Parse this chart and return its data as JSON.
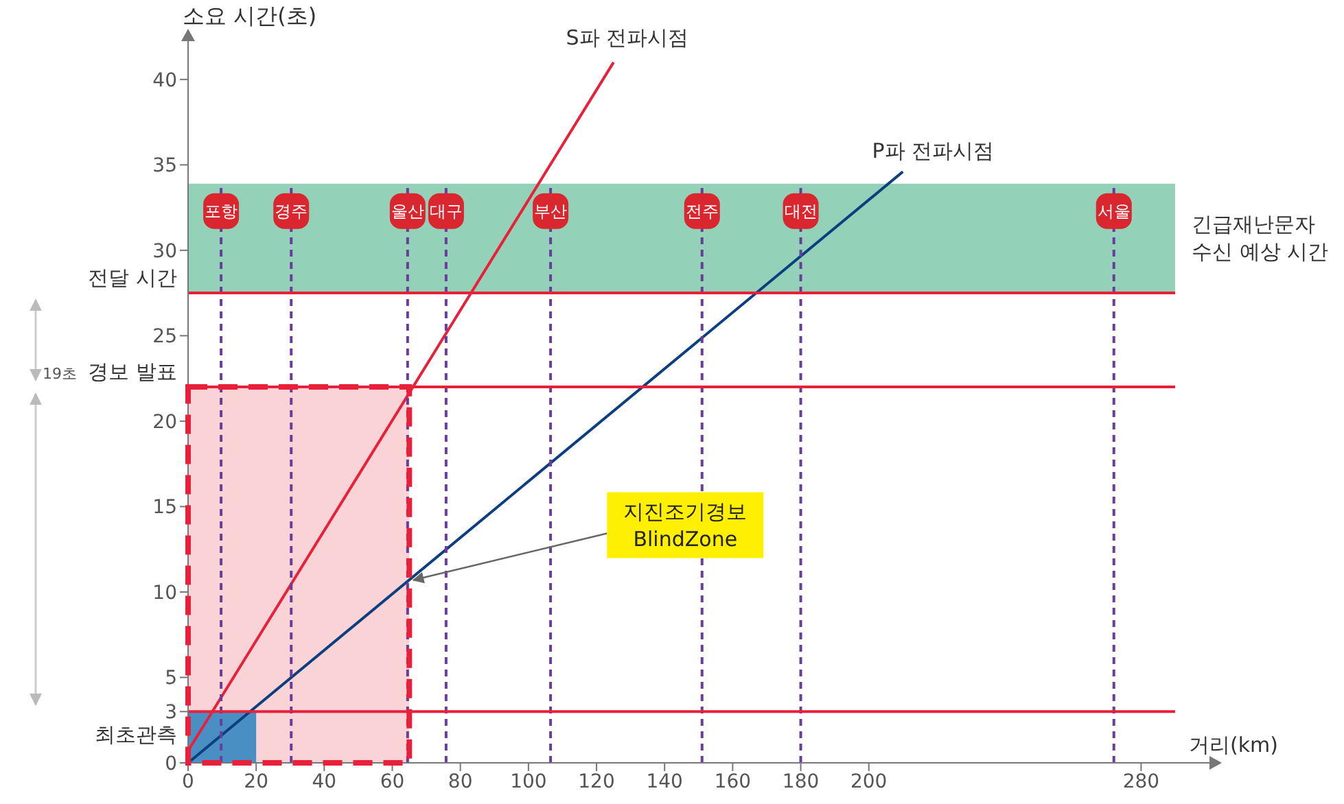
{
  "chart_data": {
    "type": "line",
    "xlabel": "거리(km)",
    "ylabel": "소요 시간(초)",
    "xlim": [
      0,
      290
    ],
    "xticks": [
      0,
      20,
      40,
      60,
      80,
      100,
      120,
      140,
      160,
      180,
      200,
      280
    ],
    "ylim": [
      0,
      42
    ],
    "yticks": [
      0,
      3,
      5,
      10,
      15,
      20,
      25,
      30,
      35,
      40
    ],
    "grid": false,
    "legend": false,
    "marker": "none",
    "line_style": "solid",
    "series": [
      {
        "type": "area",
        "color": "#f9d3d5",
        "x": [
          0,
          65
        ],
        "values": [
          22,
          22
        ]
      },
      {
        "type": "area",
        "color": "#4a8fc4",
        "x": [
          0,
          20
        ],
        "values": [
          3,
          3
        ]
      },
      {
        "color": "#e8203a",
        "x": [
          0,
          125
        ],
        "values": [
          0.7,
          41
        ]
      },
      {
        "color": "#0b3f7f",
        "x": [
          0,
          210
        ],
        "values": [
          0,
          34.6
        ]
      }
    ],
    "bands": [
      {
        "axis": "y",
        "from": 27.5,
        "to": 33.9,
        "label": "긴급재난문자\n수신 예상 시간",
        "color": "#93d2b9"
      }
    ],
    "ref_lines": [
      {
        "axis": "y",
        "value": 3,
        "label": "최초관측",
        "color": "#e8203a"
      },
      {
        "axis": "y",
        "value": 22,
        "label": "경보 발표",
        "color": "#e8203a"
      },
      {
        "axis": "y",
        "value": 27.5,
        "label": "전달 시간",
        "color": "#e8203a"
      },
      {
        "axis": "x",
        "value": 9.7,
        "label": "포항",
        "color": "#6a3d9a",
        "line_style": "dashed"
      },
      {
        "axis": "x",
        "value": 30.3,
        "label": "경주",
        "color": "#6a3d9a",
        "line_style": "dashed"
      },
      {
        "axis": "x",
        "value": 64.5,
        "label": "울산",
        "color": "#6a3d9a",
        "line_style": "dashed"
      },
      {
        "axis": "x",
        "value": 75.8,
        "label": "대구",
        "color": "#6a3d9a",
        "line_style": "dashed"
      },
      {
        "axis": "x",
        "value": 106.5,
        "label": "부산",
        "color": "#6a3d9a",
        "line_style": "dashed"
      },
      {
        "axis": "x",
        "value": 151,
        "label": "전주",
        "color": "#6a3d9a",
        "line_style": "dashed"
      },
      {
        "axis": "x",
        "value": 180,
        "label": "대전",
        "color": "#6a3d9a",
        "line_style": "dashed"
      },
      {
        "axis": "x",
        "value": 272,
        "label": "서울",
        "color": "#6a3d9a",
        "line_style": "dashed"
      }
    ],
    "annotations": [
      {
        "text": "S파 전파시점",
        "x": 125,
        "y": 41
      },
      {
        "text": "P파 전파시점",
        "x": 210,
        "y": 34.6
      },
      {
        "text": "지진조기경보\nBlindZone",
        "x": 65,
        "y": 10.7
      },
      "19초"
    ]
  }
}
